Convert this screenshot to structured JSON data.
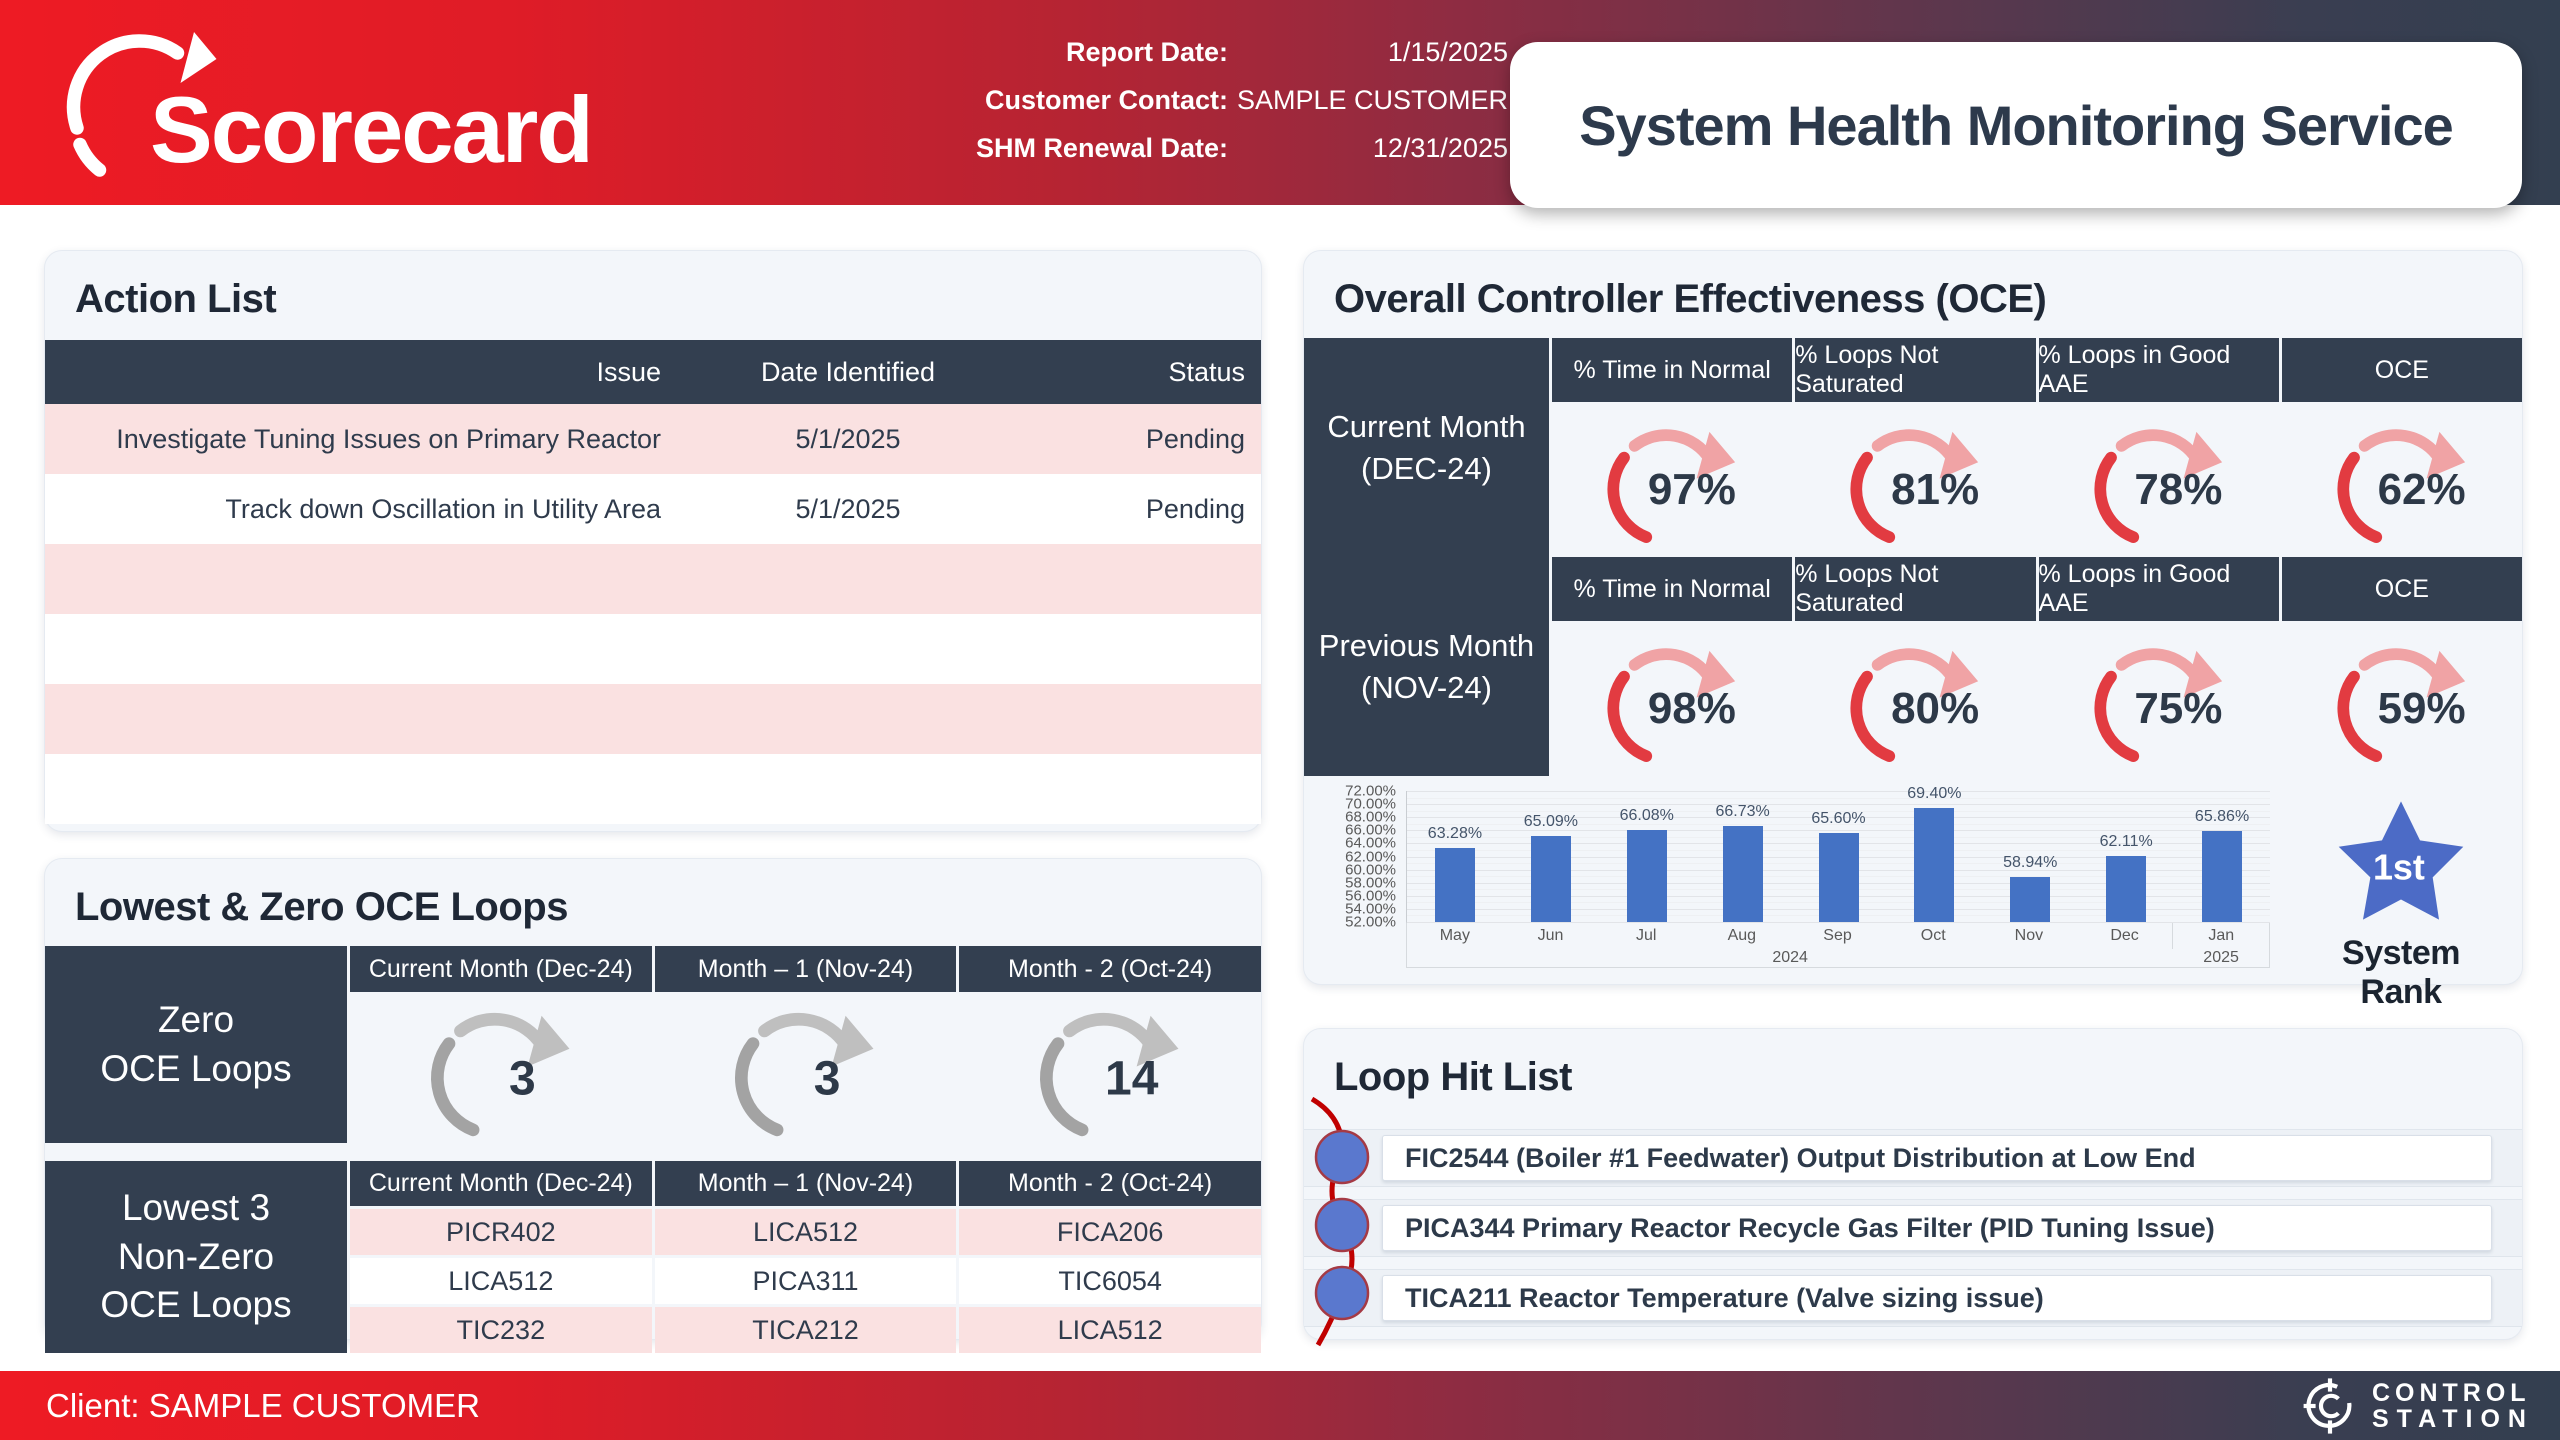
{
  "header": {
    "logo_text": "Scorecard",
    "fields": [
      {
        "label": "Report Date:",
        "value": "1/15/2025"
      },
      {
        "label": "Customer Contact:",
        "value": "SAMPLE CUSTOMER"
      },
      {
        "label": "SHM Renewal Date:",
        "value": "12/31/2025"
      }
    ],
    "card_title": "System Health Monitoring Service"
  },
  "action_list": {
    "title": "Action List",
    "columns": [
      "Issue",
      "Date Identified",
      "Status"
    ],
    "rows": [
      {
        "issue": "Investigate Tuning Issues on Primary Reactor",
        "date": "5/1/2025",
        "status": "Pending"
      },
      {
        "issue": "Track down Oscillation in Utility Area",
        "date": "5/1/2025",
        "status": "Pending"
      },
      {
        "issue": "",
        "date": "",
        "status": ""
      },
      {
        "issue": "",
        "date": "",
        "status": ""
      },
      {
        "issue": "",
        "date": "",
        "status": ""
      },
      {
        "issue": "",
        "date": "",
        "status": ""
      }
    ]
  },
  "lowest_zero": {
    "title": "Lowest & Zero OCE Loops",
    "columns": [
      "Current Month (Dec-24)",
      "Month – 1 (Nov-24)",
      "Month - 2 (Oct-24)"
    ],
    "zero_label": [
      "Zero",
      "OCE Loops"
    ],
    "zero_values": [
      "3",
      "3",
      "14"
    ],
    "lowest_label": [
      "Lowest 3",
      "Non-Zero",
      "OCE Loops"
    ],
    "lowest_rows": [
      [
        "PICR402",
        "LICA512",
        "FICA206"
      ],
      [
        "LICA512",
        "PICA311",
        "TIC6054"
      ],
      [
        "TIC232",
        "TICA212",
        "LICA512"
      ]
    ]
  },
  "oce": {
    "title": "Overall Controller Effectiveness (OCE)",
    "columns": [
      "% Time in Normal",
      "% Loops Not Saturated",
      "% Loops in Good AAE",
      "OCE"
    ],
    "blocks": [
      {
        "label": [
          "Current Month",
          "(DEC-24)"
        ],
        "values": [
          "97%",
          "81%",
          "78%",
          "62%"
        ]
      },
      {
        "label": [
          "Previous Month",
          "(NOV-24)"
        ],
        "values": [
          "98%",
          "80%",
          "75%",
          "59%"
        ]
      }
    ],
    "rank": {
      "value": "1st",
      "label": "System Rank"
    }
  },
  "chart_data": {
    "type": "bar",
    "title": "",
    "x": [
      "May",
      "Jun",
      "Jul",
      "Aug",
      "Sep",
      "Oct",
      "Nov",
      "Dec",
      "Jan"
    ],
    "year_groups": [
      {
        "label": "2024",
        "span": 8
      },
      {
        "label": "2025",
        "span": 1
      }
    ],
    "values": [
      63.28,
      65.09,
      66.08,
      66.73,
      65.6,
      69.4,
      58.94,
      62.11,
      65.86
    ],
    "labels": [
      "63.28%",
      "65.09%",
      "66.08%",
      "66.73%",
      "65.60%",
      "69.40%",
      "58.94%",
      "62.11%",
      "65.86%"
    ],
    "ylim": [
      52,
      72
    ],
    "ytick_step": 2,
    "ytick_labels": [
      "52.00%",
      "54.00%",
      "56.00%",
      "58.00%",
      "60.00%",
      "62.00%",
      "64.00%",
      "66.00%",
      "68.00%",
      "70.00%",
      "72.00%"
    ],
    "bar_color": "#4472C4",
    "grid": true,
    "legend": "none"
  },
  "hit_list": {
    "title": "Loop Hit List",
    "items": [
      "FIC2544 (Boiler #1 Feedwater) Output Distribution at Low End",
      "PICA344 Primary Reactor Recycle Gas Filter (PID Tuning Issue)",
      "TICA211 Reactor Temperature (Valve sizing issue)"
    ]
  },
  "footer": {
    "client": "Client: SAMPLE CUSTOMER",
    "brand": [
      "CONTROL",
      "STATION"
    ]
  },
  "colors": {
    "brand_red": "#EC1C24",
    "dark_slate": "#333F50",
    "pink_row": "#FAE1E1",
    "gauge_red": "#E23B41",
    "gauge_pink": "#F0A3A5",
    "gauge_gray": "#A3A3A3",
    "gauge_gray_light": "#BFBFBF",
    "bar_blue": "#4472C4",
    "star_blue": "#4C6BC6"
  }
}
